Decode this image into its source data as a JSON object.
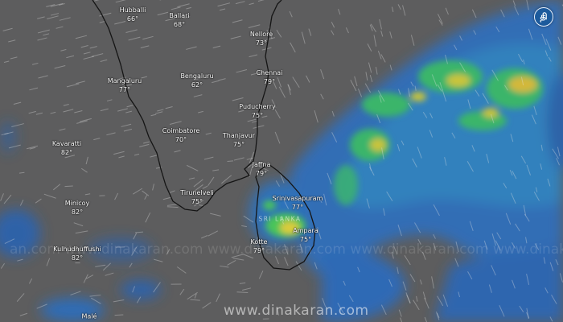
{
  "map": {
    "colors": {
      "background": "#5d5d5e",
      "coastline": "#1a1a1a",
      "rain_light": "#2f78c9",
      "rain_mid": "#3bbf6a",
      "rain_heavy": "#d6c43a"
    },
    "country_label": "SRI LANKA",
    "cities": [
      {
        "name": "Hubballi",
        "temp": "66°"
      },
      {
        "name": "Ballari",
        "temp": "68°"
      },
      {
        "name": "Nellore",
        "temp": "73°"
      },
      {
        "name": "Chennai",
        "temp": "79°"
      },
      {
        "name": "Mangaluru",
        "temp": "77°"
      },
      {
        "name": "Bengaluru",
        "temp": "62°"
      },
      {
        "name": "Puducherry",
        "temp": "75°"
      },
      {
        "name": "Coimbatore",
        "temp": "70°"
      },
      {
        "name": "Thanjavur",
        "temp": "75°"
      },
      {
        "name": "Kavaratti",
        "temp": "82°"
      },
      {
        "name": "Jaffna",
        "temp": "79°"
      },
      {
        "name": "Tirunelveli",
        "temp": "75°"
      },
      {
        "name": "Minicoy",
        "temp": "82°"
      },
      {
        "name": "Srinivasapuram",
        "temp": "77°"
      },
      {
        "name": "Kulhudhuffushi",
        "temp": "82°"
      },
      {
        "name": "Ampara",
        "temp": "75°"
      },
      {
        "name": "Kotte",
        "temp": "79°"
      },
      {
        "name": "Malé",
        "temp": ""
      }
    ]
  },
  "watermark": {
    "text": "www.dinakaran.com",
    "faint_text": "an.com   www.dinakaran.com   www.dinakaran.com   www.dinakaran.com   www.dinakaran.com"
  },
  "logo": {
    "glyph": "தி",
    "icon": "dinakaran-logo-icon"
  }
}
